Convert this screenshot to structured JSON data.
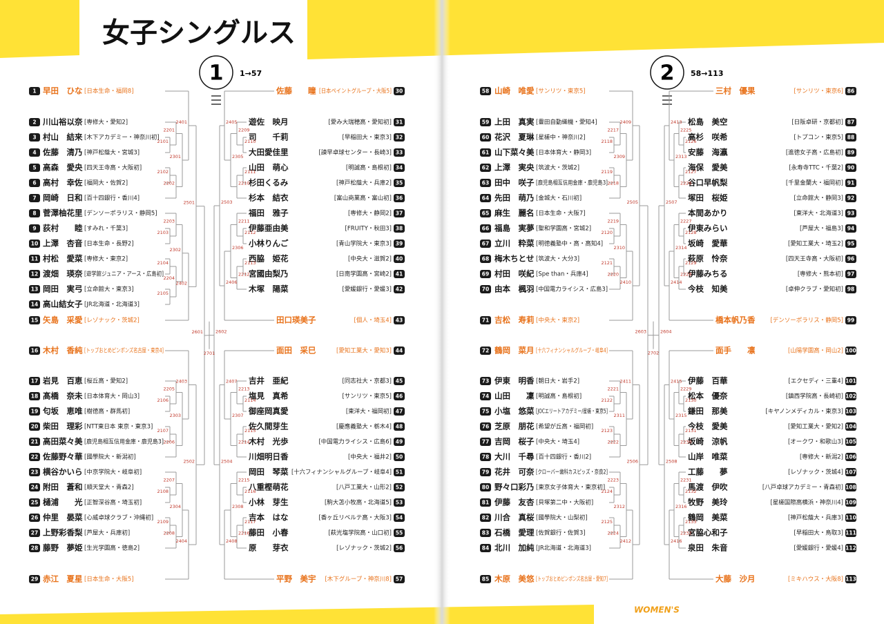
{
  "header": {
    "title": "女子シングルス"
  },
  "sections": [
    {
      "number": 1,
      "range": "1→57"
    },
    {
      "number": 2,
      "range": "58→113"
    }
  ],
  "columns": [
    {
      "players": [
        {
          "no": 1,
          "name": "早田　ひな",
          "team": "[日本生命・福岡8]"
        },
        {
          "no": 2,
          "name": "川山裕以奈",
          "team": "[専修大・愛知2]"
        },
        {
          "no": 3,
          "name": "村山　結来",
          "team": "[木下アカデミー・神奈川初]"
        },
        {
          "no": 4,
          "name": "佐藤　清乃",
          "team": "[神戸松蔭大・宮城3]"
        },
        {
          "no": 5,
          "name": "高森　愛央",
          "team": "[四天王寺高・大阪初]"
        },
        {
          "no": 6,
          "name": "高村　幸佐",
          "team": "[福岡大・佐賀2]"
        },
        {
          "no": 7,
          "name": "岡崎　日和",
          "team": "[百十四銀行・香川4]"
        },
        {
          "no": 8,
          "name": "菅澤柚花里",
          "team": "[デンソーポラリス・静岡5]"
        },
        {
          "no": 9,
          "name": "荻村　　睦",
          "team": "[すみれ・千葉3]"
        },
        {
          "no": 10,
          "name": "上澤　杏音",
          "team": "[日本生命・長野2]"
        },
        {
          "no": 11,
          "name": "村松　愛菜",
          "team": "[専修大・東京2]"
        },
        {
          "no": 12,
          "name": "渡畑　瑛奈",
          "team": "[遊学館ジュニア・アース・広島初]"
        },
        {
          "no": 13,
          "name": "岡田　実弓",
          "team": "[立命館大・東京3]"
        },
        {
          "no": 14,
          "name": "高山結女子",
          "team": "[JR北海道・北海道3]"
        },
        {
          "no": 15,
          "name": "矢島　采愛",
          "team": "[レゾナック・茨城2]"
        },
        {
          "no": 16,
          "name": "木村　香純",
          "team": "[トップおとめピンポンズ名古屋・東京4]"
        },
        {
          "no": 17,
          "name": "岩見　百恵",
          "team": "[桜丘高・愛知2]"
        },
        {
          "no": 18,
          "name": "髙橋　奈未",
          "team": "[日本体育大・岡山3]"
        },
        {
          "no": 19,
          "name": "匂坂　恵唯",
          "team": "[樹徳高・群馬初]"
        },
        {
          "no": 20,
          "name": "柴田　理彩",
          "team": "[NTT東日本 東京・東京3]"
        },
        {
          "no": 21,
          "name": "高田菜々美",
          "team": "[鹿児島相互信用金庫・鹿児島3]"
        },
        {
          "no": 22,
          "name": "佐藤野々華",
          "team": "[國學院大・新潟初]"
        },
        {
          "no": 23,
          "name": "横谷かいら",
          "team": "[中京学院大・岐阜初]"
        },
        {
          "no": 24,
          "name": "附田　蒼和",
          "team": "[順天堂大・青森2]"
        },
        {
          "no": 25,
          "name": "樋浦　　光",
          "team": "[正智深谷高・埼玉初]"
        },
        {
          "no": 26,
          "name": "仲里　晏菜",
          "team": "[心威卓球クラブ・沖縄初]"
        },
        {
          "no": 27,
          "name": "上野彩香梨",
          "team": "[芦屋大・兵庫初]"
        },
        {
          "no": 28,
          "name": "藤野　夢姫",
          "team": "[生光学園高・徳島2]"
        },
        {
          "no": 29,
          "name": "赤江　夏星",
          "team": "[日本生命・大阪5]"
        }
      ],
      "matches": [
        2401,
        2201,
        2101,
        2301,
        2102,
        2202,
        2501,
        2203,
        2103,
        2302,
        2104,
        2204,
        2105,
        2402,
        2403,
        2205,
        2106,
        2303,
        2107,
        2206,
        2502,
        2207,
        2108,
        2304,
        2109,
        2208,
        2404,
        2601
      ]
    },
    {
      "players": [
        {
          "no": 30,
          "name": "佐藤　　瞳",
          "team": "[日本ペイントグループ・大阪5]"
        },
        {
          "no": 31,
          "name": "遊佐　映月",
          "team": "[愛み大瑞穂高・愛知初]"
        },
        {
          "no": 32,
          "name": "司　　千莉",
          "team": "[早稲田大・東京3]"
        },
        {
          "no": 33,
          "name": "大田愛佳里",
          "team": "[諫早卓球センター・長崎3]"
        },
        {
          "no": 34,
          "name": "山田　萌心",
          "team": "[明誠高・島根初]"
        },
        {
          "no": 35,
          "name": "杉田くるみ",
          "team": "[神戸松蔭大・兵庫2]"
        },
        {
          "no": 36,
          "name": "杉本　結衣",
          "team": "[富山商業高・富山初]"
        },
        {
          "no": 37,
          "name": "福田　雅子",
          "team": "[専修大・静岡2]"
        },
        {
          "no": 38,
          "name": "伊藤亜由美",
          "team": "[FRUITY・秋田3]"
        },
        {
          "no": 39,
          "name": "小林りんご",
          "team": "[青山学院大・東京3]"
        },
        {
          "no": 40,
          "name": "西脇　姫花",
          "team": "[中央大・滋賀2]"
        },
        {
          "no": 41,
          "name": "宮國由梨乃",
          "team": "[日南学園高・宮崎2]"
        },
        {
          "no": 42,
          "name": "木塚　陽菜",
          "team": "[愛媛銀行・愛媛3]"
        },
        {
          "no": 43,
          "name": "田口瑛美子",
          "team": "[個人・埼玉4]"
        },
        {
          "no": 44,
          "name": "面田　采巳",
          "team": "[愛知工業大・愛知3]"
        },
        {
          "no": 45,
          "name": "吉井　亜紀",
          "team": "[同志社大・京都3]"
        },
        {
          "no": 46,
          "name": "塩見　真希",
          "team": "[サンリツ・東京5]"
        },
        {
          "no": 47,
          "name": "御座岡真愛",
          "team": "[東洋大・福岡初]"
        },
        {
          "no": 48,
          "name": "佐久間芽生",
          "team": "[慶應義塾大・栃木4]"
        },
        {
          "no": 49,
          "name": "木村　光歩",
          "team": "[中国電力ライシス・広島6]"
        },
        {
          "no": 50,
          "name": "川畑明日香",
          "team": "[中央大・福井2]"
        },
        {
          "no": 51,
          "name": "岡田　琴菜",
          "team": "[十六フィナンシャルグループ・岐阜4]"
        },
        {
          "no": 52,
          "name": "八重樫萌花",
          "team": "[八戸工業大・山形2]"
        },
        {
          "no": 53,
          "name": "小林　芽生",
          "team": "[駒大苫小牧高・北海道5]"
        },
        {
          "no": 54,
          "name": "吉本　はな",
          "team": "[香ヶ丘リベルテ高・大阪3]"
        },
        {
          "no": 55,
          "name": "藤田　小春",
          "team": "[萩光塩学院高・山口初]"
        },
        {
          "no": 56,
          "name": "原　　芽衣",
          "team": "[レゾナック・茨城2]"
        },
        {
          "no": 57,
          "name": "平野　美宇",
          "team": "[木下グループ・神奈川8]"
        }
      ],
      "matches": [
        2405,
        2209,
        2110,
        2305,
        2111,
        2210,
        2503,
        2211,
        2112,
        2306,
        2113,
        2212,
        2406,
        2407,
        2213,
        2114,
        2307,
        2115,
        2214,
        2504,
        2215,
        2116,
        2308,
        2117,
        2216,
        2408,
        2602
      ]
    },
    {
      "players": [
        {
          "no": 58,
          "name": "山崎　唯愛",
          "team": "[サンリツ・東京5]"
        },
        {
          "no": 59,
          "name": "上田　真実",
          "team": "[豊田自動織機・愛知4]"
        },
        {
          "no": 60,
          "name": "花沢　夏琳",
          "team": "[星槎中・神奈川2]"
        },
        {
          "no": 61,
          "name": "山下菜々美",
          "team": "[日本体育大・静岡3]"
        },
        {
          "no": 62,
          "name": "上澤　実央",
          "team": "[筑波大・茨城2]"
        },
        {
          "no": 63,
          "name": "田中　咲子",
          "team": "[鹿児島相互信用金庫・鹿児島3]"
        },
        {
          "no": 64,
          "name": "先田　萌乃",
          "team": "[金城大・石川初]"
        },
        {
          "no": 65,
          "name": "麻生　麗名",
          "team": "[日本生命・大阪7]"
        },
        {
          "no": 66,
          "name": "福島　実夢",
          "team": "[聖和学園高・宮城2]"
        },
        {
          "no": 67,
          "name": "立川　粋菜",
          "team": "[明徳義塾中・高・高知4]"
        },
        {
          "no": 68,
          "name": "梅木ちとせ",
          "team": "[筑波大・大分3]"
        },
        {
          "no": 69,
          "name": "村田　咲紀",
          "team": "[Spe than・兵庫4]"
        },
        {
          "no": 70,
          "name": "由本　楓羽",
          "team": "[中国電力ライシス・広島3]"
        },
        {
          "no": 71,
          "name": "吉松　寿莉",
          "team": "[中央大・東京2]"
        },
        {
          "no": 72,
          "name": "鶴岡　菜月",
          "team": "[十六フィナンシャルグループ・岐阜4]"
        },
        {
          "no": 73,
          "name": "伊東　明香",
          "team": "[朝日大・岩手2]"
        },
        {
          "no": 74,
          "name": "山田　　凜",
          "team": "[明誠高・島根初]"
        },
        {
          "no": 75,
          "name": "小塩　悠菜",
          "team": "[JOCエリートアカデミー/星槎・東京5]"
        },
        {
          "no": 76,
          "name": "芝原　朋花",
          "team": "[希望が丘高・福岡初]"
        },
        {
          "no": 77,
          "name": "吉岡　桜子",
          "team": "[中央大・埼玉4]"
        },
        {
          "no": 78,
          "name": "大川　千尋",
          "team": "[百十四銀行・香川2]"
        },
        {
          "no": 79,
          "name": "花井　可奈",
          "team": "[クローバー歯科カスピッズ・奈良2]"
        },
        {
          "no": 80,
          "name": "野々口彩乃",
          "team": "[東京女子体育大・東京初]"
        },
        {
          "no": 81,
          "name": "伊藤　友杏",
          "team": "[貝塚第二中・大阪初]"
        },
        {
          "no": 82,
          "name": "川合　真桜",
          "team": "[國學院大・山梨初]"
        },
        {
          "no": 83,
          "name": "石橋　愛理",
          "team": "[佐賀銀行・佐賀3]"
        },
        {
          "no": 84,
          "name": "北川　加純",
          "team": "[JR北海道・北海道3]"
        },
        {
          "no": 85,
          "name": "木原　美悠",
          "team": "[トップおとめピンポンズ名古屋・愛知7]"
        }
      ],
      "matches": [
        2409,
        2217,
        2118,
        2309,
        2119,
        2218,
        2505,
        2219,
        2120,
        2310,
        2121,
        2220,
        2410,
        2411,
        2221,
        2122,
        2311,
        2123,
        2222,
        2506,
        2223,
        2124,
        2312,
        2125,
        2224,
        2412,
        2603
      ]
    },
    {
      "players": [
        {
          "no": 86,
          "name": "三村　優果",
          "team": "[サンリツ・東京6]"
        },
        {
          "no": 87,
          "name": "松島　美空",
          "team": "[日阪卓研・京都初]"
        },
        {
          "no": 88,
          "name": "高杉　咲希",
          "team": "[トプコン・東京5]"
        },
        {
          "no": 89,
          "name": "安藤　海瀛",
          "team": "[進徳女子高・広島初]"
        },
        {
          "no": 90,
          "name": "海保　愛美",
          "team": "[永寿寺TTC・千葉2]"
        },
        {
          "no": 91,
          "name": "谷口早帆梨",
          "team": "[千里金蘭大・福岡初]"
        },
        {
          "no": 92,
          "name": "塚田　桜姫",
          "team": "[立命館大・静岡3]"
        },
        {
          "no": 93,
          "name": "本間あかり",
          "team": "[東洋大・北海道3]"
        },
        {
          "no": 94,
          "name": "伊東みらい",
          "team": "[芦屋大・福島3]"
        },
        {
          "no": 95,
          "name": "坂崎　愛華",
          "team": "[愛知工業大・埼玉2]"
        },
        {
          "no": 96,
          "name": "萩原　怜奈",
          "team": "[四天王寺高・大阪初]"
        },
        {
          "no": 97,
          "name": "伊藤みちる",
          "team": "[専修大・熊本初]"
        },
        {
          "no": 98,
          "name": "今枝　知美",
          "team": "[卓伸クラブ・愛知初]"
        },
        {
          "no": 99,
          "name": "橋本帆乃香",
          "team": "[デンソーポラリス・静岡5]"
        },
        {
          "no": 100,
          "name": "面手　　凛",
          "team": "[山陽学園高・岡山2]"
        },
        {
          "no": 101,
          "name": "伊藤　百華",
          "team": "[エクセディ・三重4]"
        },
        {
          "no": 102,
          "name": "松本　優奈",
          "team": "[鎮西学院高・長崎初]"
        },
        {
          "no": 103,
          "name": "鎌田　那美",
          "team": "[キヤノンメディカル・東京3]"
        },
        {
          "no": 104,
          "name": "今枝　愛美",
          "team": "[愛知工業大・愛知2]"
        },
        {
          "no": 105,
          "name": "坂崎　涼帆",
          "team": "[オークワ・和歌山3]"
        },
        {
          "no": 106,
          "name": "山岸　唯菜",
          "team": "[専修大・新潟2]"
        },
        {
          "no": 107,
          "name": "工藤　　夢",
          "team": "[レゾナック・茨城4]"
        },
        {
          "no": 108,
          "name": "馬渡　伊吹",
          "team": "[八戸卓球アカデミー・青森初]"
        },
        {
          "no": 109,
          "name": "牧野　美玲",
          "team": "[星槎国際高横浜・神奈川4]"
        },
        {
          "no": 110,
          "name": "鶴岡　美菜",
          "team": "[神戸松蔭大・兵庫3]"
        },
        {
          "no": 111,
          "name": "宮脇心和子",
          "team": "[早稲田大・鳥取3]"
        },
        {
          "no": 112,
          "name": "泉田　朱音",
          "team": "[愛媛銀行・愛媛4]"
        },
        {
          "no": 113,
          "name": "大藤　沙月",
          "team": "[ミキハウス・大阪8]"
        }
      ],
      "matches": [
        2413,
        2225,
        2126,
        2313,
        2127,
        2226,
        2507,
        2227,
        2128,
        2314,
        2129,
        2228,
        2414,
        2415,
        2229,
        2130,
        2315,
        2131,
        2230,
        2508,
        2231,
        2132,
        2316,
        2133,
        2232,
        2416,
        2604
      ]
    }
  ],
  "finals": [
    2701,
    2702
  ],
  "footer": {
    "text": "WOMEN'S"
  }
}
